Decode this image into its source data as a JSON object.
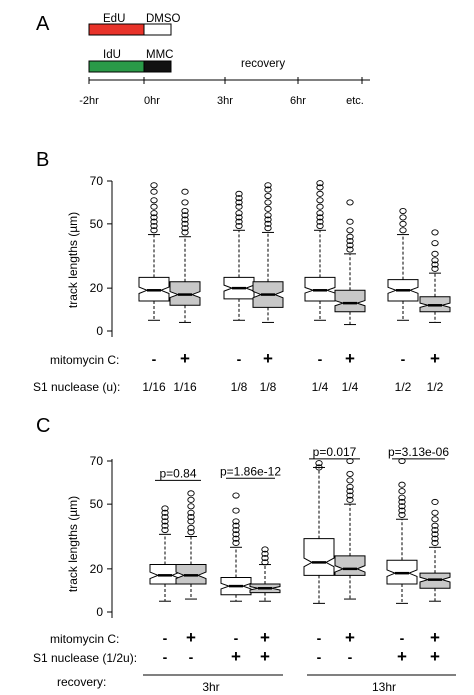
{
  "panel_a": {
    "letter": "A",
    "bars": [
      {
        "label": "EdU",
        "color": "#e8332a",
        "box_label": "DMSO",
        "box_color": "#ffffff"
      },
      {
        "label": "IdU",
        "color": "#2a9a48",
        "box_label": "MMC",
        "box_color": "#111111"
      }
    ],
    "recovery_label": "recovery",
    "time_ticks": [
      "-2hr",
      "0hr",
      "3hr",
      "6hr",
      "etc."
    ]
  },
  "chart_data": [
    {
      "panel": "B",
      "type": "boxplot",
      "ylabel": "track lengths (µm)",
      "yticks": [
        0,
        20,
        50,
        70
      ],
      "ylim": [
        -2,
        72
      ],
      "row_labels": [
        "mitomycin C:",
        "S1 nuclease (u):"
      ],
      "mitomycin": [
        "-",
        "+",
        "-",
        "+",
        "-",
        "+",
        "-",
        "+"
      ],
      "s1": [
        "1/16",
        "1/16",
        "1/8",
        "1/8",
        "1/4",
        "1/4",
        "1/2",
        "1/2"
      ],
      "boxes": [
        {
          "q1": 14,
          "median": 19,
          "q3": 25,
          "wlo": 5,
          "whi": 45,
          "notch": 1.5,
          "fill": "#ffffff",
          "outliers": [
            47,
            49,
            51,
            53,
            55,
            58,
            61,
            65,
            68
          ]
        },
        {
          "q1": 12,
          "median": 17,
          "q3": 23,
          "wlo": 4,
          "whi": 44,
          "notch": 1.4,
          "fill": "#c8c8c8",
          "outliers": [
            46,
            48,
            50,
            52,
            54,
            56,
            60,
            65
          ]
        },
        {
          "q1": 15,
          "median": 20,
          "q3": 25,
          "wlo": 5,
          "whi": 47,
          "notch": 1.4,
          "fill": "#ffffff",
          "outliers": [
            49,
            51,
            53,
            55,
            58,
            60,
            62,
            64
          ]
        },
        {
          "q1": 11,
          "median": 17,
          "q3": 23,
          "wlo": 4,
          "whi": 46,
          "notch": 1.5,
          "fill": "#c8c8c8",
          "outliers": [
            48,
            50,
            52,
            54,
            57,
            60,
            63,
            66,
            68
          ]
        },
        {
          "q1": 14,
          "median": 19,
          "q3": 25,
          "wlo": 5,
          "whi": 47,
          "notch": 1.3,
          "fill": "#ffffff",
          "outliers": [
            49,
            51,
            53,
            55,
            58,
            61,
            64,
            67,
            69
          ]
        },
        {
          "q1": 9,
          "median": 13,
          "q3": 19,
          "wlo": 3,
          "whi": 36,
          "notch": 1.2,
          "fill": "#c8c8c8",
          "outliers": [
            38,
            40,
            42,
            44,
            47,
            51,
            60
          ]
        },
        {
          "q1": 14,
          "median": 19,
          "q3": 24,
          "wlo": 5,
          "whi": 45,
          "notch": 1.4,
          "fill": "#ffffff",
          "outliers": [
            47,
            50,
            53,
            56
          ]
        },
        {
          "q1": 9,
          "median": 12,
          "q3": 16,
          "wlo": 4,
          "whi": 27,
          "notch": 1.0,
          "fill": "#c8c8c8",
          "outliers": [
            29,
            31,
            33,
            36,
            41,
            46
          ]
        }
      ]
    },
    {
      "panel": "C",
      "type": "boxplot",
      "ylabel": "track lengths (µm)",
      "yticks": [
        0,
        20,
        50,
        70
      ],
      "ylim": [
        -2,
        72
      ],
      "row_labels": [
        "mitomycin C:",
        "S1 nuclease (1/2u):",
        "recovery:"
      ],
      "mitomycin": [
        "-",
        "+",
        "-",
        "+",
        "-",
        "+",
        "-",
        "+"
      ],
      "s1": [
        "-",
        "-",
        "+",
        "+",
        "-",
        "-",
        "+",
        "+"
      ],
      "recovery_groups": [
        "3hr",
        "13hr"
      ],
      "pvalues": [
        {
          "text": "p=0.84",
          "from": 0,
          "to": 1,
          "y": 61
        },
        {
          "text": "p=1.86e-12",
          "from": 2,
          "to": 3,
          "y": 62
        },
        {
          "text": "p=0.017",
          "from": 4,
          "to": 5,
          "y": 71
        },
        {
          "text": "p=3.13e-06",
          "from": 6,
          "to": 7,
          "y": 71
        }
      ],
      "boxes": [
        {
          "q1": 13,
          "median": 17,
          "q3": 22,
          "wlo": 5,
          "whi": 36,
          "notch": 1.5,
          "fill": "#ffffff",
          "outliers": [
            38,
            40,
            42,
            44,
            46,
            48
          ]
        },
        {
          "q1": 13,
          "median": 17,
          "q3": 22,
          "wlo": 6,
          "whi": 35,
          "notch": 1.5,
          "fill": "#c8c8c8",
          "outliers": [
            37,
            39,
            42,
            44,
            46,
            49,
            52,
            55
          ]
        },
        {
          "q1": 8,
          "median": 12,
          "q3": 16,
          "wlo": 5,
          "whi": 30,
          "notch": 1.3,
          "fill": "#ffffff",
          "outliers": [
            32,
            34,
            36,
            38,
            40,
            42,
            47,
            54
          ]
        },
        {
          "q1": 9,
          "median": 11,
          "q3": 13,
          "wlo": 5,
          "whi": 22,
          "notch": 0.8,
          "fill": "#c8c8c8",
          "outliers": [
            23,
            25,
            27,
            29
          ]
        },
        {
          "q1": 17,
          "median": 23,
          "q3": 34,
          "wlo": 4,
          "whi": 67,
          "notch": 2.0,
          "fill": "#ffffff",
          "outliers": [
            67,
            69
          ]
        },
        {
          "q1": 17,
          "median": 20,
          "q3": 26,
          "wlo": 6,
          "whi": 50,
          "notch": 1.5,
          "fill": "#c8c8c8",
          "outliers": [
            52,
            54,
            56,
            58,
            61,
            64,
            70
          ]
        },
        {
          "q1": 13,
          "median": 18,
          "q3": 24,
          "wlo": 4,
          "whi": 43,
          "notch": 1.5,
          "fill": "#ffffff",
          "outliers": [
            45,
            47,
            49,
            51,
            53,
            56,
            59,
            70
          ]
        },
        {
          "q1": 11,
          "median": 15,
          "q3": 18,
          "wlo": 5,
          "whi": 30,
          "notch": 1.1,
          "fill": "#c8c8c8",
          "outliers": [
            32,
            34,
            36,
            38,
            40,
            43,
            46,
            51
          ]
        }
      ]
    }
  ]
}
